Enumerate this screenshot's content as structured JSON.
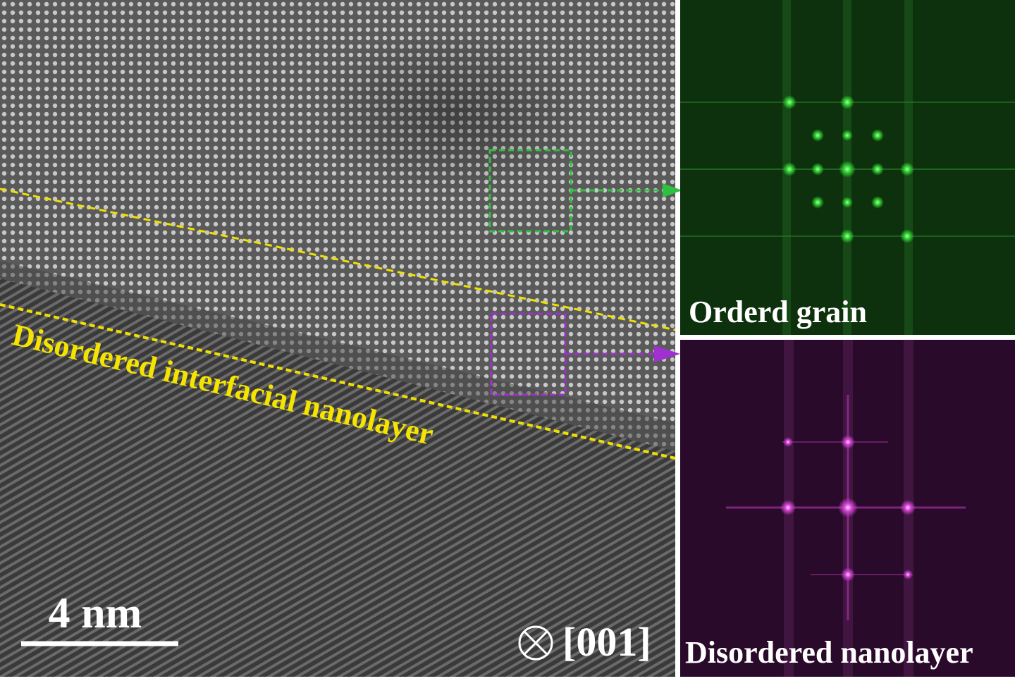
{
  "image": {
    "annotation": "Disordered interfacial nanolayer",
    "scale_bar": "4 nm",
    "zone_axis": "[001]"
  },
  "panels": [
    {
      "label": "Orderd grain"
    },
    {
      "label": "Disordered nanolayer"
    }
  ]
}
